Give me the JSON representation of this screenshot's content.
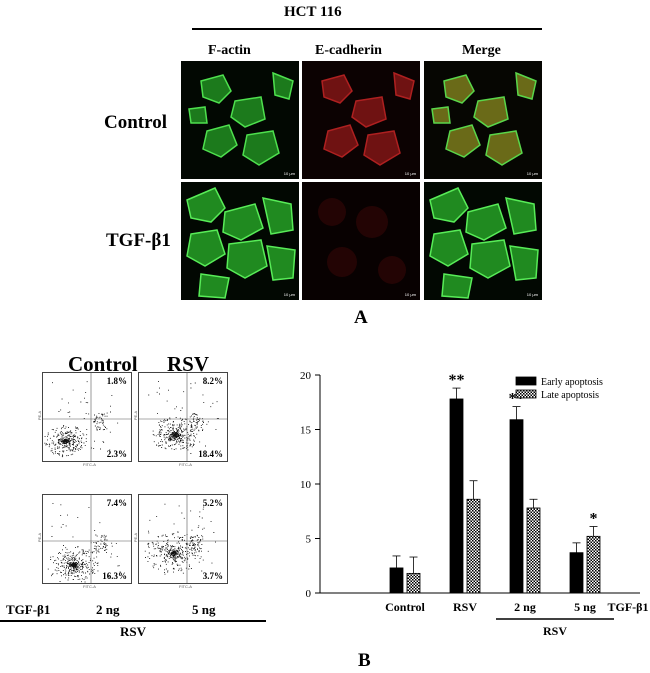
{
  "panel_a": {
    "cell_line": "HCT 116",
    "columns": [
      "F-actin",
      "E-cadherin",
      "Merge"
    ],
    "rows": [
      "Control",
      "TGF-β1"
    ],
    "scale_bar": "10 μm",
    "letter": "A"
  },
  "panel_b": {
    "letter": "B",
    "flow": {
      "column_titles": [
        "Control",
        "RSV"
      ],
      "plots": [
        {
          "ur": "1.8%",
          "lr": "2.3%"
        },
        {
          "ur": "8.2%",
          "lr": "18.4%"
        },
        {
          "ur": "7.4%",
          "lr": "16.3%"
        },
        {
          "ur": "5.2%",
          "lr": "3.7%"
        }
      ],
      "axis_x": "FITC-A",
      "axis_y": "PE-A",
      "tgf_label": "TGF-β1",
      "doses": [
        "2 ng",
        "5 ng"
      ],
      "rsv_label": "RSV"
    },
    "colors": {
      "early": "#000000",
      "late_pattern": "#ffffff"
    }
  },
  "chart_data": {
    "type": "bar",
    "categories": [
      "Control",
      "RSV",
      "2 ng",
      "5 ng"
    ],
    "series": [
      {
        "name": "Early apoptosis",
        "values": [
          2.3,
          17.8,
          15.9,
          3.7
        ],
        "errors": [
          1.1,
          1.0,
          1.2,
          0.9
        ]
      },
      {
        "name": "Late apoptosis",
        "values": [
          1.8,
          8.6,
          7.8,
          5.2
        ],
        "errors": [
          1.5,
          1.7,
          0.8,
          0.9
        ]
      }
    ],
    "significance": [
      {
        "category": "RSV",
        "series": "Early apoptosis",
        "mark": "**"
      },
      {
        "category": "2 ng",
        "series": "Early apoptosis",
        "mark": "**"
      },
      {
        "category": "5 ng",
        "series": "Late apoptosis",
        "mark": "*"
      }
    ],
    "ylim": [
      0,
      20
    ],
    "yticks": [
      "0",
      "5",
      "10",
      "15",
      "20"
    ],
    "xlabel_right": "TGF-β1",
    "group_label": "RSV",
    "legend_position": "top-right"
  }
}
